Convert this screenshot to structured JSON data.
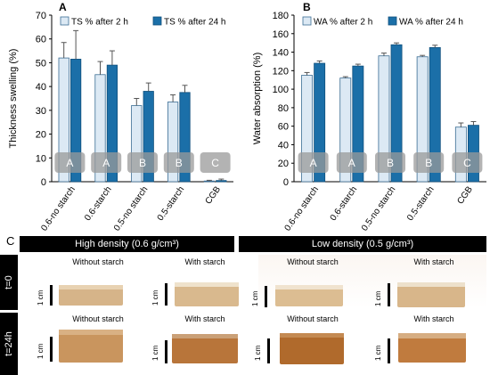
{
  "chart_data": [
    {
      "type": "bar",
      "panel_label": "A",
      "ylabel": "Thickness swelling (%)",
      "ylim": [
        0,
        70
      ],
      "yticks": [
        0,
        10,
        20,
        30,
        40,
        50,
        60,
        70
      ],
      "categories": [
        "0.6-no starch",
        "0.6-starch",
        "0.5-no starch",
        "0.5-starch",
        "CGB"
      ],
      "series": [
        {
          "name": "TS  % after 2 h",
          "values": [
            52,
            45,
            32,
            33.5,
            0.3
          ],
          "errors": [
            6.5,
            5.5,
            3,
            3,
            0.3
          ]
        },
        {
          "name": "TS % after 24 h",
          "values": [
            51.5,
            49,
            38,
            37.5,
            0.5
          ],
          "errors": [
            12,
            6,
            3.5,
            3,
            0.6
          ]
        }
      ],
      "group_letters": [
        "A",
        "A",
        "B",
        "B",
        "C"
      ],
      "grid": false,
      "legend": "top"
    },
    {
      "type": "bar",
      "panel_label": "B",
      "ylabel": "Water absorption (%)",
      "ylim": [
        0,
        180
      ],
      "yticks": [
        0,
        20,
        40,
        60,
        80,
        100,
        120,
        140,
        160,
        180
      ],
      "categories": [
        "0.6-no starch",
        "0.6-starch",
        "0.5-no starch",
        "0.5-starch",
        "CGB"
      ],
      "series": [
        {
          "name": "WA % after 2 h",
          "values": [
            115,
            112,
            136,
            135,
            59
          ],
          "errors": [
            3,
            1.5,
            3,
            1.5,
            4.5
          ]
        },
        {
          "name": "WA % after 24 h",
          "values": [
            128,
            125,
            148,
            145,
            61
          ],
          "errors": [
            2.5,
            2,
            2,
            2.5,
            4
          ]
        }
      ],
      "group_letters": [
        "A",
        "A",
        "B",
        "B",
        "C"
      ],
      "grid": false,
      "legend": "top"
    }
  ],
  "colors": {
    "series_light": "#dce9f4",
    "series_dark": "#1b6fa8",
    "letter_box": "#9a9a9a",
    "header_bg": "#000000"
  },
  "panel_c": {
    "label": "C",
    "high_density": "High density (0.6 g/cm³)",
    "low_density": "Low density (0.5 g/cm³)",
    "rows": [
      "t=0",
      "t=24h"
    ],
    "captions": {
      "without": "Without starch",
      "with": "With starch"
    },
    "scale_label": "1 cm"
  }
}
